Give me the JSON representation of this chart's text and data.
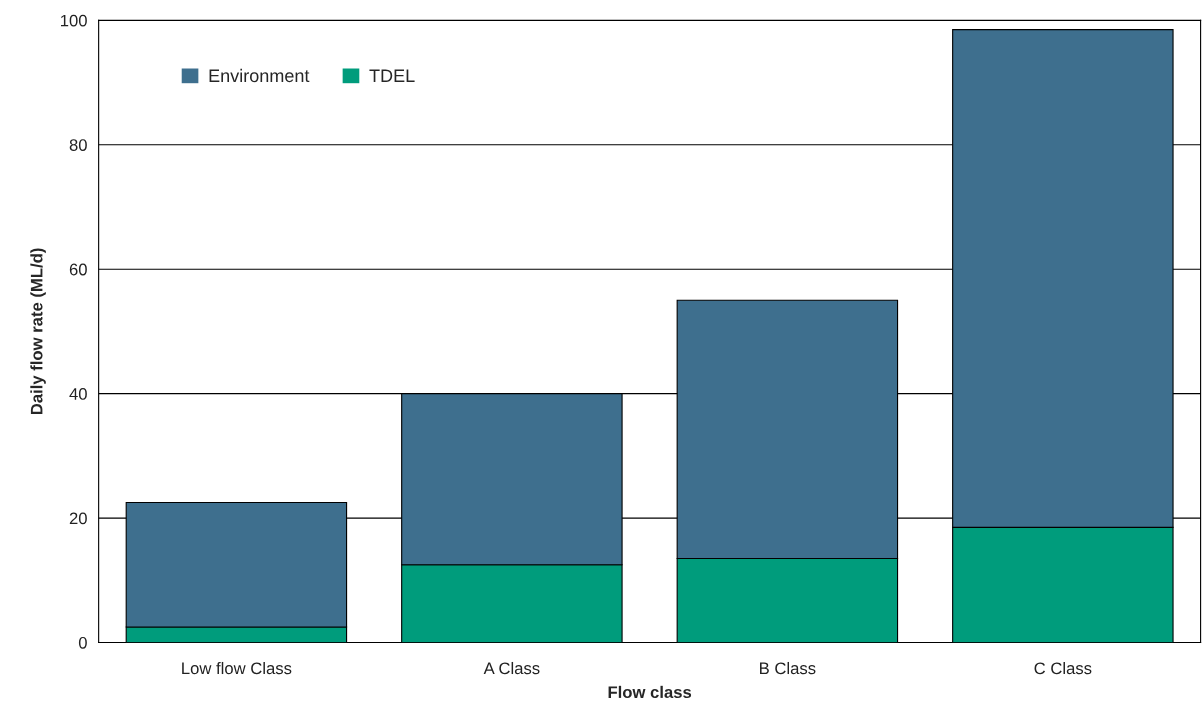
{
  "chart_data": {
    "type": "bar",
    "stacked": true,
    "xlabel": "Flow class",
    "ylabel": "Daily flow rate (ML/d)",
    "categories": [
      "Low flow Class",
      "A Class",
      "B Class",
      "C Class"
    ],
    "series": [
      {
        "name": "TDEL",
        "color": "#009c7c",
        "values": [
          2.5,
          12.5,
          13.5,
          18.5
        ]
      },
      {
        "name": "Environment",
        "color": "#3e6f8e",
        "values": [
          20,
          27.5,
          41.5,
          80
        ]
      }
    ],
    "ylim": [
      0,
      100
    ],
    "yticks": [
      0,
      20,
      40,
      60,
      80,
      100
    ],
    "grid": "y",
    "legend": "top left"
  }
}
